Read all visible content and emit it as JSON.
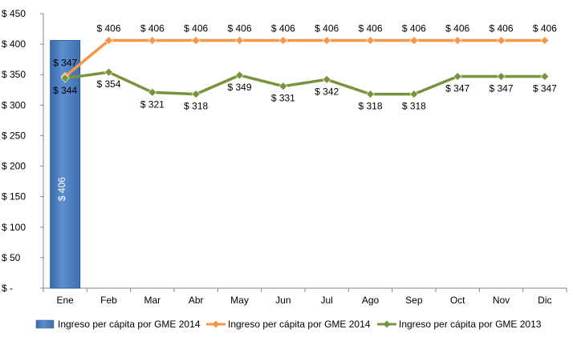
{
  "chart_data": {
    "type": "bar+line",
    "title": "",
    "xlabel": "",
    "ylabel": "",
    "ylim": [
      0,
      450
    ],
    "y_ticks": [
      "$ -",
      "$ 50",
      "$ 100",
      "$ 150",
      "$ 200",
      "$ 250",
      "$ 300",
      "$ 350",
      "$ 400",
      "$ 450"
    ],
    "categories": [
      "Ene",
      "Feb",
      "Mar",
      "Abr",
      "May",
      "Jun",
      "Jul",
      "Ago",
      "Sep",
      "Oct",
      "Nov",
      "Dic"
    ],
    "grid": false,
    "legend_position": "bottom",
    "series": [
      {
        "name": "Ingreso per cápita por GME 2014",
        "kind": "bar",
        "color": "#4f81bd",
        "values": [
          406,
          null,
          null,
          null,
          null,
          null,
          null,
          null,
          null,
          null,
          null,
          null
        ],
        "labels": [
          "$ 406",
          "",
          "",
          "",
          "",
          "",
          "",
          "",
          "",
          "",
          "",
          ""
        ]
      },
      {
        "name": "Ingreso per cápita por GME 2014",
        "kind": "line",
        "color": "#f79646",
        "values": [
          347,
          406,
          406,
          406,
          406,
          406,
          406,
          406,
          406,
          406,
          406,
          406
        ],
        "labels": [
          "$ 347",
          "$ 406",
          "$ 406",
          "$ 406",
          "$ 406",
          "$ 406",
          "$ 406",
          "$ 406",
          "$ 406",
          "$ 406",
          "$ 406",
          "$ 406"
        ]
      },
      {
        "name": "Ingreso per cápita por GME 2013",
        "kind": "line",
        "color": "#77933c",
        "values": [
          344,
          354,
          321,
          318,
          349,
          331,
          342,
          318,
          318,
          347,
          347,
          347
        ],
        "labels": [
          "$ 344",
          "$ 354",
          "$ 321",
          "$ 318",
          "$ 349",
          "$ 331",
          "$ 342",
          "$ 318",
          "$ 318",
          "$ 347",
          "$ 347",
          "$ 347"
        ]
      }
    ]
  }
}
